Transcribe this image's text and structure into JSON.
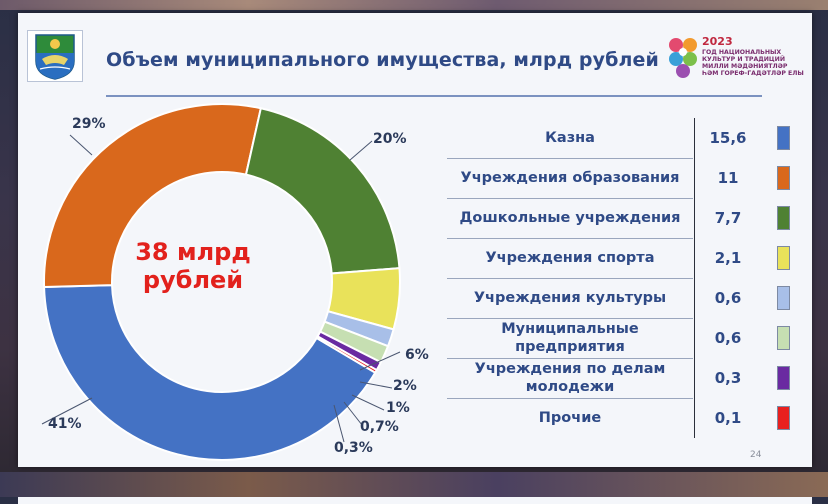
{
  "slide": {
    "title": "Объем муниципального имущества, млрд рублей",
    "page_number": "24",
    "year_logo": {
      "year": "2023",
      "line1": "ГОД НАЦИОНАЛЬНЫХ",
      "line2": "КУЛЬТУР И ТРАДИЦИЙ",
      "line3": "МИЛЛИ МӘДӘНИЯТЛӘР",
      "line4": "ҺӘМ ГОРЕФ-ГАДӘТЛӘР ЕЛЫ"
    }
  },
  "chart_data": {
    "type": "pie",
    "donut": true,
    "center_label_line1": "38 млрд",
    "center_label_line2": "рублей",
    "categories": [
      "Казна",
      "Учреждения образования",
      "Дошкольные учреждения",
      "Учреждения спорта",
      "Учреждения культуры",
      "Муниципальные предприятия",
      "Учреждения по делам молодежи",
      "Прочие"
    ],
    "values": [
      15.6,
      11,
      7.7,
      2.1,
      0.6,
      0.6,
      0.3,
      0.1
    ],
    "value_labels": [
      "15,6",
      "11",
      "7,7",
      "2,1",
      "0,6",
      "0,6",
      "0,3",
      "0,1"
    ],
    "percent_labels": [
      "41%",
      "29%",
      "20%",
      "6%",
      "2%",
      "1%",
      "0,7%",
      "0,3%"
    ],
    "colors": [
      "#4472c4",
      "#d9681c",
      "#4f8133",
      "#e9e25a",
      "#a8bfe8",
      "#c6dfb2",
      "#6a2aa1",
      "#e8201e"
    ],
    "legend_placement": "right",
    "name_lines": [
      [
        "Казна"
      ],
      [
        "Учреждения образования"
      ],
      [
        "Дошкольные учреждения"
      ],
      [
        "Учреждения спорта"
      ],
      [
        "Учреждения культуры"
      ],
      [
        "Муниципальные",
        "предприятия"
      ],
      [
        "Учреждения по делам",
        "молодежи"
      ],
      [
        "Прочие"
      ]
    ]
  }
}
